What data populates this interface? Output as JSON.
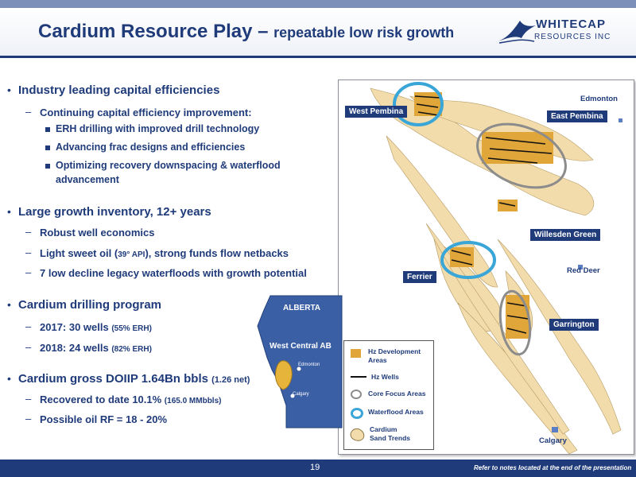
{
  "header": {
    "title_main": "Cardium Resource Play – ",
    "title_sub": "repeatable low risk growth",
    "logo_line1": "WHITECAP",
    "logo_line2": "RESOURCES INC"
  },
  "bullets": {
    "capital": {
      "head": "Industry leading capital efficiencies",
      "sub": "Continuing capital efficiency improvement:",
      "items": [
        "ERH drilling with improved drill technology",
        "Advancing frac designs and efficiencies",
        "Optimizing recovery downspacing & waterflood",
        "advancement"
      ]
    },
    "inventory": {
      "head": "Large growth inventory, 12+ years",
      "items": [
        "Robust well economics",
        "Light sweet oil (",
        "39° API",
        "), strong funds flow netbacks",
        "7 low decline legacy waterfloods with growth potential"
      ]
    },
    "drilling": {
      "head": "Cardium drilling program",
      "y2017": "2017:  30 wells ",
      "y2017_note": "(55% ERH)",
      "y2018": "2018:  24 wells ",
      "y2018_note": "(82% ERH)"
    },
    "doiip": {
      "head": "Cardium gross DOIIP 1.64Bn bbls ",
      "head_note": "(1.26 net)",
      "recovered": "Recovered to date 10.1% ",
      "recovered_note": "(165.0 MMbbls)",
      "rf": "Possible oil RF = 18 - 20%"
    }
  },
  "inset_map": {
    "province": "ALBERTA",
    "region": "West Central AB",
    "city1": "Edmonton",
    "city2": "Calgary"
  },
  "map": {
    "labels": {
      "west_pembina": "West Pembina",
      "east_pembina": "East Pembina",
      "willesden_green": "Willesden Green",
      "ferrier": "Ferrier",
      "garrington": "Garrington"
    },
    "cities": {
      "edmonton": "Edmonton",
      "red_deer": "Red Deer",
      "calgary": "Calgary"
    },
    "legend": {
      "hz_dev": "Hz Development",
      "hz_dev2": "Areas",
      "hz_wells": "Hz Wells",
      "core": "Core Focus Areas",
      "waterflood": "Waterflood Areas",
      "sand": "Cardium",
      "sand2": "Sand Trends"
    }
  },
  "footer": {
    "page": "19",
    "note": "Refer to notes located at the end of the presentation"
  },
  "colors": {
    "navy": "#1f3b7a",
    "sand": "#f3dcac",
    "dev": "#e0a63a",
    "core_ring": "#8c8c8c",
    "waterflood_ring": "#3aa6d8"
  }
}
